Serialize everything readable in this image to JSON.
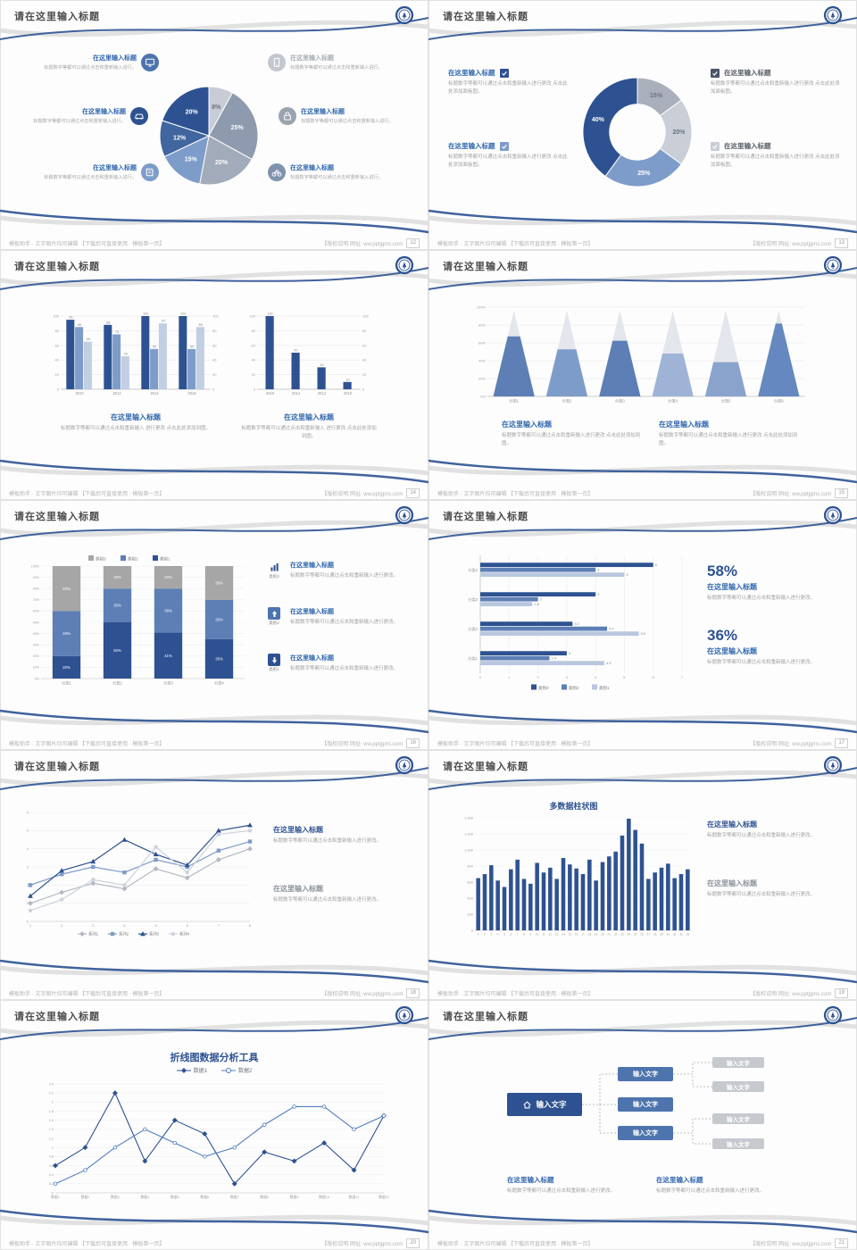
{
  "common": {
    "slide_title": "请在这里输入标题",
    "footer_left": "模板助手 · 文字图片均可编辑 【下载后可直接使用 · 模板第一页】",
    "footer_right": "【版权说明 网址: ww.pptjgms.com"
  },
  "colors": {
    "navy": "#2e5291",
    "blue": "#4d74ad",
    "light_blue": "#7e9cc9",
    "pale_blue": "#c2cee2",
    "gray": "#a6a6a6",
    "title_blue": "#2f66ad"
  },
  "slides": [
    {
      "page": "12",
      "items_left": [
        {
          "title": "在这里输入标题",
          "text": "标题数字等都可以通过点击和重新输入进行。"
        },
        {
          "title": "在这里输入标题",
          "text": "标题数字等都可以通过点击和重新输入进行。"
        },
        {
          "title": "在这里输入标题",
          "text": "标题数字等都可以通过点击和重新输入进行。"
        }
      ],
      "items_right": [
        {
          "title": "在这里输入标题",
          "text": "标题数字等都可以通过点击和重新输入进行。"
        },
        {
          "title": "在这里输入标题",
          "text": "标题数字等都可以通过点击和重新输入进行。"
        },
        {
          "title": "在这里输入标题",
          "text": "标题数字等都可以通过点击和重新输入进行。"
        }
      ]
    },
    {
      "page": "13",
      "items_left": [
        {
          "title": "在这里输入标题",
          "text": "标题数字等都可以通过点击和重新输入进行更改 点击此处添加面板图。"
        },
        {
          "title": "在这里输入标题",
          "text": "标题数字等都可以通过点击和重新输入进行更改 点击此处添加面板图。"
        }
      ],
      "items_right": [
        {
          "title": "在这里输入标题",
          "text": "标题数字等都可以通过点击和重新输入进行更改 点击此处添加面板图。"
        },
        {
          "title": "在这里输入标题",
          "text": "标题数字等都可以通过点击和重新输入进行更改 点击此处添加面板图。"
        }
      ]
    },
    {
      "page": "14",
      "blocks": [
        {
          "title": "在这里输入标题",
          "text": "标题数字等都可以通过点击和重新输入 进行更改 点击此处添加到图。"
        },
        {
          "title": "在这里输入标题",
          "text": "标题数字等都可以通过点击和重新输入 进行更改 点击此处添加到图。"
        }
      ]
    },
    {
      "page": "15",
      "blocks": [
        {
          "title": "在这里输入标题",
          "text": "标题数字等都可以通过点击和重新输入进行更改 点击此处添加到图。"
        },
        {
          "title": "在这里输入标题",
          "text": "标题数字等都可以通过点击和重新输入进行更改 点击此处添加到图。"
        }
      ]
    },
    {
      "page": "16",
      "items": [
        {
          "tag": "类别3",
          "title": "在这里输入标题",
          "text": "标题数字等都可以通过点击和重新输入进行更改。"
        },
        {
          "tag": "类别2",
          "title": "在这里输入标题",
          "text": "标题数字等都可以通过点击和重新输入进行更改。"
        },
        {
          "tag": "类别1",
          "title": "在这里输入标题",
          "text": "标题数字等都可以通过点击和重新输入进行更改。"
        }
      ]
    },
    {
      "page": "17",
      "stats": [
        {
          "value": "58%",
          "title": "在这里输入标题",
          "text": "标题数字等都可以通过点击和重新输入进行更改。"
        },
        {
          "value": "36%",
          "title": "在这里输入标题",
          "text": "标题数字等都可以通过点击和重新输入进行更改。"
        }
      ]
    },
    {
      "page": "18",
      "blocks": [
        {
          "title": "在这里输入标题",
          "text": "标题数字等都可以通过点击和重新输入进行更改。"
        },
        {
          "title": "在这里输入标题",
          "text": "标题数字等都可以通过点击和重新输入进行更改。"
        }
      ]
    },
    {
      "page": "19",
      "blocks": [
        {
          "title": "在这里输入标题",
          "text": "标题数字等都可以通过点击和重新输入进行更改。"
        },
        {
          "title": "在这里输入标题",
          "text": "标题数字等都可以通过点击和重新输入进行更改。"
        }
      ]
    },
    {
      "page": "20"
    },
    {
      "page": "21",
      "diagram": {
        "root": "输入文字",
        "mid": [
          "输入文字",
          "输入文字",
          "输入文字"
        ],
        "leaves": [
          "输入文字",
          "输入文字",
          "输入文字",
          "输入文字"
        ]
      },
      "blocks": [
        {
          "title": "在这里输入标题",
          "text": "标题数字等都可以通过点击和重新输入进行更改。"
        },
        {
          "title": "在这里输入标题",
          "text": "标题数字等都可以通过点击和重新输入进行更改。"
        }
      ]
    }
  ],
  "chart_data": [
    {
      "type": "pie",
      "values": [
        8,
        25,
        20,
        15,
        12,
        20
      ],
      "labels": [
        "8%",
        "25%",
        "20%",
        "15%",
        "12%",
        "20%"
      ],
      "colors": [
        "#c7ccd6",
        "#8e9aae",
        "#a2abb9",
        "#7e9cc9",
        "#41669f",
        "#2e5291"
      ]
    },
    {
      "type": "donut",
      "values": [
        15,
        20,
        25,
        40
      ],
      "labels": [
        "15%",
        "20%",
        "25%",
        "40%"
      ],
      "colors": [
        "#a9b0bc",
        "#c9ced7",
        "#7e9cc9",
        "#2e5291"
      ],
      "hole": 0.52
    },
    {
      "type": "bars",
      "categories": [
        "2010",
        "2012",
        "2014",
        "2016"
      ],
      "series": [
        {
          "name": "系列1",
          "color": "#2e5291",
          "values": [
            95,
            88,
            100,
            100
          ]
        },
        {
          "name": "系列2",
          "color": "#7e9cc9",
          "values": [
            85,
            75,
            55,
            55
          ]
        },
        {
          "name": "系列3",
          "color": "#c2cee2",
          "values": [
            65,
            45,
            90,
            85
          ]
        }
      ],
      "ylim": [
        0,
        100
      ],
      "ytick_step": 20,
      "value_labels": true,
      "axis_right": true
    },
    {
      "type": "bars",
      "categories": [
        "2016",
        "2014",
        "2012",
        "2010"
      ],
      "series": [
        {
          "name": "系列1",
          "color": "#2e5291",
          "values": [
            100,
            50,
            30,
            10
          ]
        }
      ],
      "ylim": [
        0,
        100
      ],
      "ytick_step": 20,
      "value_labels": true,
      "axis_right": true
    },
    {
      "type": "pyramid",
      "categories": [
        "分类1",
        "分类2",
        "分类3",
        "分类4",
        "分类5",
        "分类6"
      ],
      "values": [
        70,
        55,
        65,
        50,
        40,
        85
      ],
      "colors": [
        "#5d7fb5",
        "#7e9cc9",
        "#5d7fb5",
        "#9fb3d6",
        "#8aa3cd",
        "#6488bf"
      ],
      "base_color": "#e3e6ec",
      "yticks": [
        "0%",
        "20%",
        "40%",
        "60%",
        "80%",
        "100%"
      ]
    },
    {
      "type": "stacked",
      "categories": [
        "分类1",
        "分类2",
        "分类3",
        "分类4"
      ],
      "series": [
        {
          "name": "类别1",
          "color": "#2e5291",
          "values": [
            20,
            50,
            41,
            35
          ]
        },
        {
          "name": "类别2",
          "color": "#5d7fb5",
          "values": [
            40,
            30,
            39,
            35
          ]
        },
        {
          "name": "类别3",
          "color": "#a6a6a6",
          "values": [
            40,
            20,
            20,
            30
          ]
        }
      ],
      "legend": [
        {
          "label": "类别3",
          "color": "#a6a6a6"
        },
        {
          "label": "类别2",
          "color": "#5d7fb5"
        },
        {
          "label": "类别1",
          "color": "#2e5291"
        }
      ]
    },
    {
      "type": "hbar",
      "categories": [
        "分类1",
        "分类2",
        "分类3",
        "分类4"
      ],
      "series": [
        {
          "name": "类别3",
          "color": "#2e5291",
          "values": [
            3,
            3.2,
            4,
            6
          ]
        },
        {
          "name": "类别2",
          "color": "#5d7fb5",
          "values": [
            2.4,
            4.4,
            2,
            4
          ]
        },
        {
          "name": "类别1",
          "color": "#b9c7de",
          "values": [
            4.3,
            5.5,
            1.8,
            5
          ]
        }
      ],
      "xlim": [
        0,
        7
      ],
      "legend": [
        {
          "label": "类别3",
          "color": "#2e5291"
        },
        {
          "label": "类别2",
          "color": "#5d7fb5"
        },
        {
          "label": "类别1",
          "color": "#b9c7de"
        }
      ]
    },
    {
      "type": "line",
      "x": [
        "1",
        "2",
        "3",
        "4",
        "5",
        "6",
        "7",
        "8"
      ],
      "ylim": [
        0,
        6
      ],
      "series": [
        {
          "name": "系列1",
          "color": "#b4bac4",
          "marker": "diamond",
          "values": [
            1.0,
            1.6,
            2.1,
            1.8,
            2.9,
            2.4,
            3.4,
            4.0
          ]
        },
        {
          "name": "系列2",
          "color": "#7e9cc9",
          "marker": "square",
          "values": [
            2.0,
            2.6,
            3.0,
            2.7,
            3.4,
            3.0,
            3.9,
            4.4
          ]
        },
        {
          "name": "系列3",
          "color": "#2e5291",
          "marker": "triangle",
          "values": [
            1.4,
            2.8,
            3.3,
            4.5,
            3.7,
            3.1,
            5.0,
            5.3
          ]
        },
        {
          "name": "系列4",
          "color": "#cdd3dc",
          "marker": "circle",
          "values": [
            0.6,
            1.2,
            2.3,
            2.0,
            4.1,
            2.7,
            4.8,
            5.0
          ]
        }
      ]
    },
    {
      "type": "columns",
      "title": "多数据柱状图",
      "color": "#2e5291",
      "ylim": [
        0,
        1400
      ],
      "yticks": [
        "0",
        "200",
        "400",
        "600",
        "800",
        "1,000",
        "1,200",
        "1,400"
      ],
      "values": [
        650,
        700,
        810,
        620,
        540,
        760,
        880,
        640,
        580,
        840,
        720,
        780,
        640,
        900,
        820,
        770,
        700,
        880,
        620,
        850,
        920,
        980,
        1180,
        1390,
        1250,
        1080,
        640,
        720,
        780,
        830,
        650,
        700,
        760
      ],
      "xlabels": [
        "1",
        "2",
        "3",
        "4",
        "5",
        "6",
        "7",
        "8",
        "9",
        "10",
        "11",
        "12",
        "13",
        "14",
        "15",
        "16",
        "17",
        "18",
        "19",
        "20",
        "21",
        "22",
        "23",
        "24",
        "25",
        "26",
        "27",
        "28",
        "29",
        "30",
        "31",
        "32",
        "33"
      ]
    },
    {
      "type": "line2",
      "title": "折线图数据分析工具",
      "ylim": [
        0,
        2.4
      ],
      "yticks": [
        "0",
        "0.2",
        "0.4",
        "0.6",
        "0.8",
        "1",
        "1.2",
        "1.4",
        "1.6",
        "1.8",
        "2",
        "2.2",
        "2.4"
      ],
      "xlabels": [
        "数据1",
        "数据2",
        "数据3",
        "数据4",
        "数据5",
        "数据6",
        "数据7",
        "数据8",
        "数据9",
        "数据10",
        "数据11",
        "数据12"
      ],
      "series": [
        {
          "name": "数据1",
          "color": "#2e5291",
          "marker": "diamond",
          "fill": true,
          "values": [
            0.6,
            1.0,
            2.2,
            0.7,
            1.6,
            1.3,
            0.2,
            0.9,
            0.7,
            1.1,
            0.5,
            1.7
          ]
        },
        {
          "name": "数据2",
          "color": "#4d7ec2",
          "marker": "circle",
          "fill": false,
          "values": [
            0.2,
            0.5,
            1.0,
            1.4,
            1.1,
            0.8,
            1.0,
            1.5,
            1.9,
            1.9,
            1.4,
            1.7
          ]
        }
      ]
    }
  ]
}
